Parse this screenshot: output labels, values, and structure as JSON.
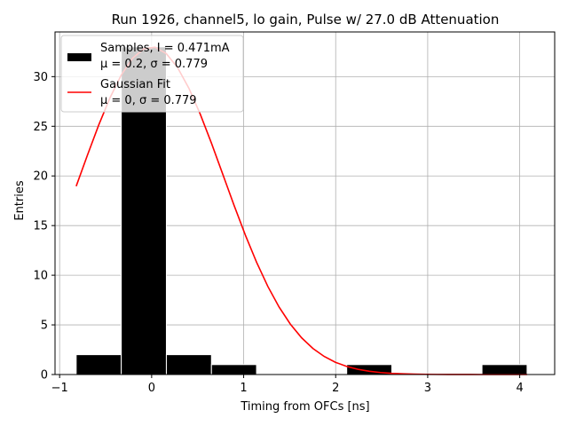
{
  "chart_data": {
    "type": "bar",
    "title": "Run 1926, channel5, lo gain, Pulse w/ 27.0 dB Attenuation",
    "xlabel": "Timing from OFCs [ns]",
    "ylabel": "Entries",
    "xlim": [
      -1.05,
      4.38
    ],
    "ylim": [
      0,
      34.5
    ],
    "xticks": [
      -1,
      0,
      1,
      2,
      3,
      4
    ],
    "xtick_labels": [
      "−1",
      "0",
      "1",
      "2",
      "3",
      "4"
    ],
    "yticks": [
      0,
      5,
      10,
      15,
      20,
      25,
      30
    ],
    "ytick_labels": [
      "0",
      "5",
      "10",
      "15",
      "20",
      "25",
      "30"
    ],
    "grid": true,
    "legend_position": "top-left",
    "histogram": {
      "name": "Samples",
      "color": "#000000",
      "bin_edges": [
        -0.82,
        -0.33,
        0.16,
        0.65,
        1.14,
        1.63,
        2.12,
        2.61,
        3.1,
        3.59,
        4.08
      ],
      "counts": [
        2,
        33,
        2,
        1,
        0,
        0,
        1,
        0,
        0,
        1
      ]
    },
    "fit": {
      "name": "Gaussian Fit",
      "color": "#ff0000",
      "mu": 0,
      "sigma": 0.779,
      "amplitude": 33,
      "x_range": [
        -0.82,
        4.08
      ]
    },
    "legend": [
      {
        "key": "samples",
        "line1": "Samples, I = 0.471mA",
        "line2": "μ = 0.2, σ = 0.779",
        "color": "#000000",
        "marker": "patch"
      },
      {
        "key": "fit",
        "line1": "Gaussian Fit",
        "line2": "μ = 0, σ = 0.779",
        "color": "#ff0000",
        "marker": "line"
      }
    ]
  }
}
